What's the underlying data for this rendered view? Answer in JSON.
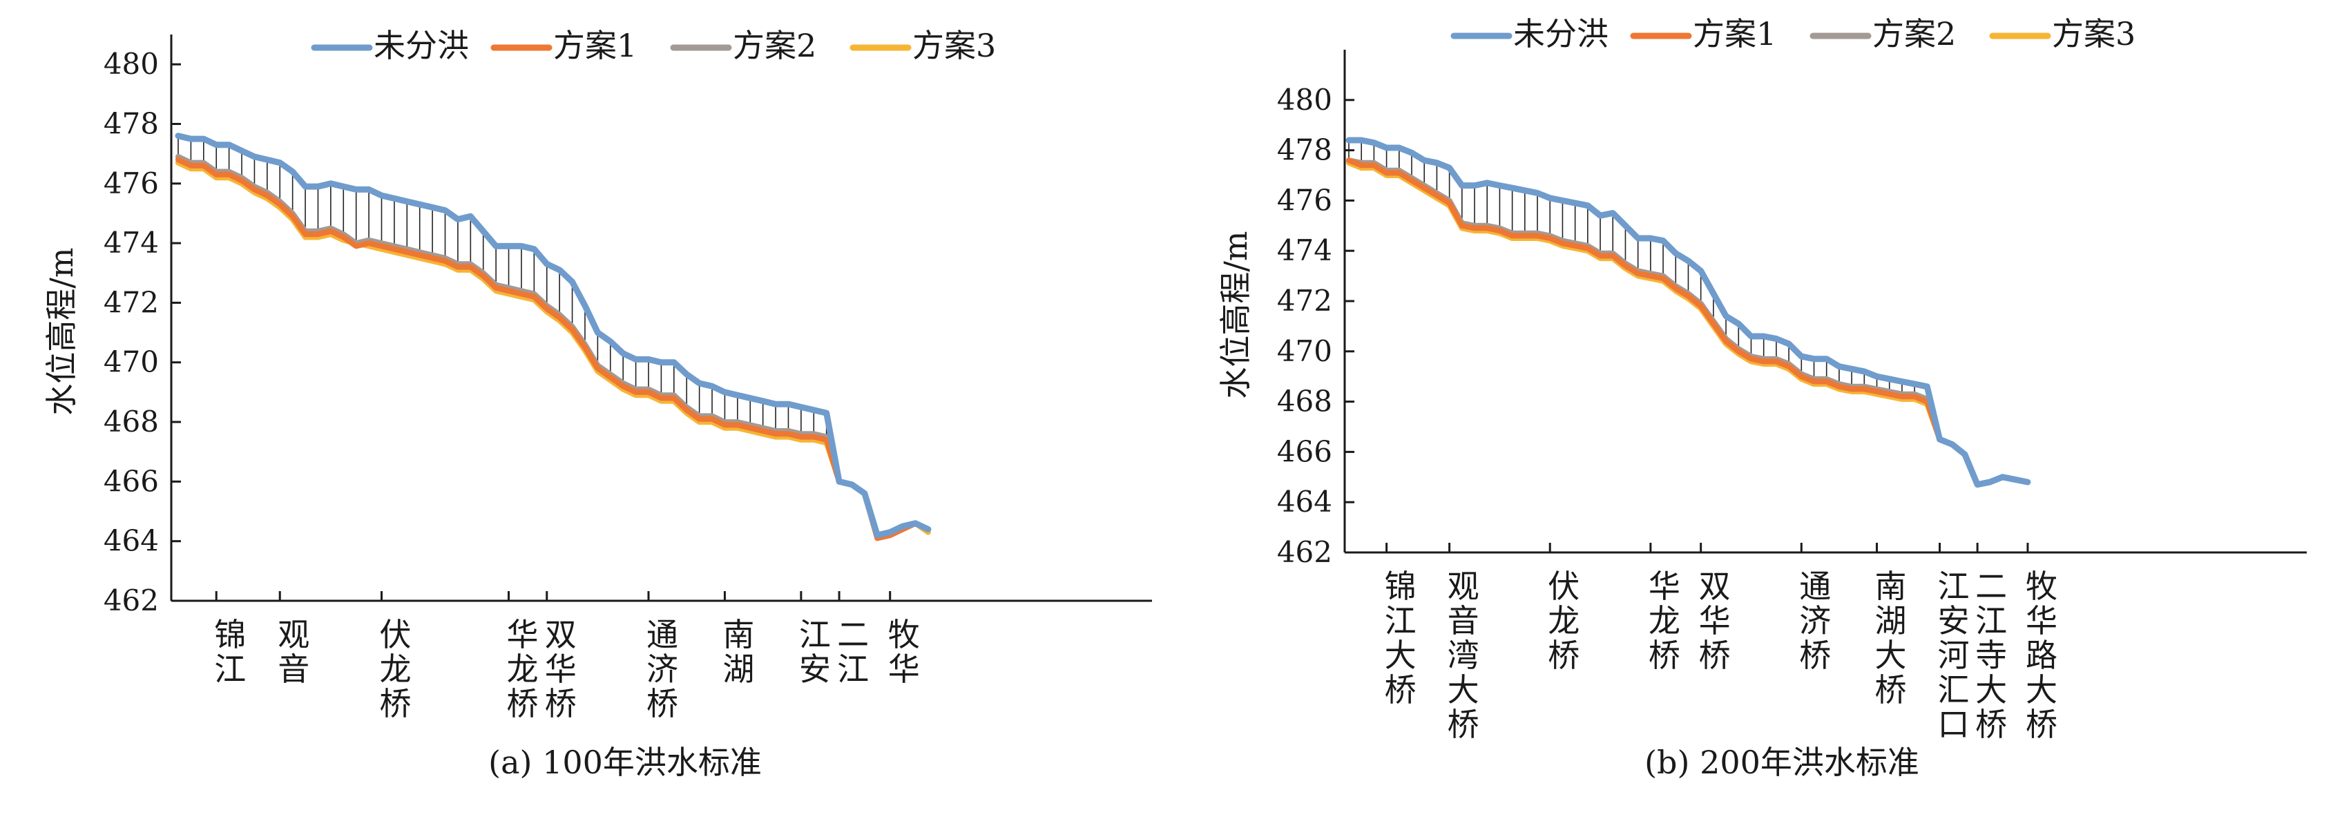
{
  "colors": {
    "未分洪": "#6f9ccc",
    "方案1": "#ee7733",
    "方案2": "#a39a95",
    "方案3": "#f6b535"
  },
  "chart_data": [
    {
      "type": "line",
      "title": "(a) 100年洪水标准",
      "ylabel": "水位高程/m",
      "ylim": [
        462,
        481
      ],
      "yticks": [
        462,
        464,
        466,
        468,
        470,
        472,
        474,
        476,
        478,
        480
      ],
      "legend": [
        "未分洪",
        "方案1",
        "方案2",
        "方案3"
      ],
      "legend_position": "top",
      "x": [
        0,
        1,
        2,
        3,
        4,
        5,
        6,
        7,
        8,
        9,
        10,
        11,
        12,
        13,
        14,
        15,
        16,
        17,
        18,
        19,
        20,
        21,
        22,
        23,
        24,
        25,
        26,
        27,
        28,
        29,
        30,
        31,
        32,
        33,
        34,
        35,
        36,
        37,
        38,
        39,
        40,
        41,
        42,
        43,
        44,
        45,
        46,
        47,
        48,
        49,
        50,
        51,
        52,
        53,
        54,
        55,
        56,
        57,
        58,
        59,
        60,
        61,
        62,
        63,
        64,
        65,
        66,
        67,
        68,
        69,
        70,
        71,
        72,
        73,
        74
      ],
      "xlim": [
        0,
        74
      ],
      "series": [
        {
          "name": "未分洪",
          "values": [
            477.6,
            477.5,
            477.5,
            477.3,
            477.3,
            477.1,
            476.9,
            476.8,
            476.7,
            476.4,
            475.9,
            475.9,
            476.0,
            475.9,
            475.8,
            475.8,
            475.6,
            475.5,
            475.4,
            475.3,
            475.2,
            475.1,
            474.8,
            474.9,
            474.4,
            473.9,
            473.9,
            473.9,
            473.8,
            473.3,
            473.1,
            472.7,
            471.9,
            471.0,
            470.7,
            470.3,
            470.1,
            470.1,
            470.0,
            470.0,
            469.6,
            469.3,
            469.2,
            469.0,
            468.9,
            468.8,
            468.7,
            468.6,
            468.6,
            468.5,
            468.4,
            468.3,
            466.0,
            465.9,
            465.6,
            464.2,
            464.3,
            464.5,
            464.6,
            464.4,
            null,
            null,
            null,
            null,
            null,
            null,
            null,
            null,
            null,
            null,
            null,
            null,
            null,
            null,
            null
          ]
        },
        {
          "name": "方案1",
          "values": [
            476.8,
            476.6,
            476.6,
            476.3,
            476.3,
            476.1,
            475.8,
            475.6,
            475.3,
            474.9,
            474.3,
            474.3,
            474.4,
            474.2,
            473.9,
            474.0,
            473.9,
            473.8,
            473.7,
            473.6,
            473.5,
            473.4,
            473.2,
            473.2,
            472.9,
            472.5,
            472.4,
            472.3,
            472.2,
            471.8,
            471.5,
            471.1,
            470.5,
            469.8,
            469.5,
            469.2,
            469.0,
            469.0,
            468.8,
            468.8,
            468.4,
            468.1,
            468.1,
            467.9,
            467.9,
            467.8,
            467.7,
            467.6,
            467.6,
            467.5,
            467.5,
            467.4,
            466.0,
            465.9,
            465.6,
            464.1,
            464.2,
            464.4,
            464.6,
            464.4,
            null,
            null,
            null,
            null,
            null,
            null,
            null,
            null,
            null,
            null,
            null,
            null,
            null,
            null,
            null
          ]
        },
        {
          "name": "方案2",
          "values": [
            476.9,
            476.7,
            476.7,
            476.4,
            476.4,
            476.2,
            475.9,
            475.7,
            475.4,
            475.0,
            474.4,
            474.4,
            474.5,
            474.3,
            474.0,
            474.1,
            474.0,
            473.9,
            473.8,
            473.7,
            473.6,
            473.5,
            473.3,
            473.3,
            473.0,
            472.6,
            472.5,
            472.4,
            472.3,
            471.9,
            471.6,
            471.2,
            470.6,
            469.9,
            469.6,
            469.3,
            469.1,
            469.1,
            468.9,
            468.9,
            468.5,
            468.2,
            468.2,
            468.0,
            468.0,
            467.9,
            467.8,
            467.7,
            467.7,
            467.6,
            467.6,
            467.5,
            466.0,
            465.9,
            465.6,
            464.1,
            464.2,
            464.4,
            464.6,
            464.4,
            null,
            null,
            null,
            null,
            null,
            null,
            null,
            null,
            null,
            null,
            null,
            null,
            null,
            null,
            null
          ]
        },
        {
          "name": "方案3",
          "values": [
            476.7,
            476.5,
            476.5,
            476.2,
            476.2,
            476.0,
            475.7,
            475.5,
            475.2,
            474.8,
            474.2,
            474.2,
            474.3,
            474.1,
            474.0,
            473.9,
            473.8,
            473.7,
            473.6,
            473.5,
            473.4,
            473.3,
            473.1,
            473.1,
            472.8,
            472.4,
            472.3,
            472.2,
            472.1,
            471.7,
            471.4,
            471.0,
            470.4,
            469.7,
            469.4,
            469.1,
            468.9,
            468.9,
            468.7,
            468.7,
            468.3,
            468.0,
            468.0,
            467.8,
            467.8,
            467.7,
            467.6,
            467.5,
            467.5,
            467.4,
            467.4,
            467.3,
            466.0,
            465.9,
            465.6,
            464.1,
            464.2,
            464.4,
            464.6,
            464.3,
            null,
            null,
            null,
            null,
            null,
            null,
            null,
            null,
            null,
            null,
            null,
            null,
            null,
            null,
            null
          ]
        }
      ],
      "xtick_labels": [
        {
          "x": 3,
          "label": "锦江"
        },
        {
          "x": 8,
          "label": "观音"
        },
        {
          "x": 16,
          "label": "伏龙桥"
        },
        {
          "x": 26,
          "label": "华龙桥"
        },
        {
          "x": 29,
          "label": "双华桥"
        },
        {
          "x": 37,
          "label": "通济桥"
        },
        {
          "x": 43,
          "label": "南湖"
        },
        {
          "x": 49,
          "label": "江安"
        },
        {
          "x": 52,
          "label": "二江"
        },
        {
          "x": 56,
          "label": "牧华"
        }
      ]
    },
    {
      "type": "line",
      "title": "(b) 200年洪水标准",
      "ylabel": "水位高程/m",
      "ylim": [
        462,
        482
      ],
      "yticks": [
        462,
        464,
        466,
        468,
        470,
        472,
        474,
        476,
        478,
        480
      ],
      "legend": [
        "未分洪",
        "方案1",
        "方案2",
        "方案3"
      ],
      "legend_position": "top",
      "x": [
        0,
        1,
        2,
        3,
        4,
        5,
        6,
        7,
        8,
        9,
        10,
        11,
        12,
        13,
        14,
        15,
        16,
        17,
        18,
        19,
        20,
        21,
        22,
        23,
        24,
        25,
        26,
        27,
        28,
        29,
        30,
        31,
        32,
        33,
        34,
        35,
        36,
        37,
        38,
        39,
        40,
        41,
        42,
        43,
        44,
        45,
        46,
        47,
        48,
        49,
        50,
        51,
        52,
        53,
        54,
        55,
        56,
        57,
        58,
        59,
        60,
        61,
        62,
        63,
        64,
        65,
        66,
        67,
        68,
        69,
        70,
        71,
        72,
        73,
        74
      ],
      "xlim": [
        0,
        74
      ],
      "series": [
        {
          "name": "未分洪",
          "values": [
            478.4,
            478.4,
            478.3,
            478.1,
            478.1,
            477.9,
            477.6,
            477.5,
            477.3,
            476.6,
            476.6,
            476.7,
            476.6,
            476.5,
            476.4,
            476.3,
            476.1,
            476.0,
            475.9,
            475.8,
            475.4,
            475.5,
            475.0,
            474.5,
            474.5,
            474.4,
            473.9,
            473.6,
            473.2,
            472.3,
            471.4,
            471.1,
            470.6,
            470.6,
            470.5,
            470.3,
            469.8,
            469.7,
            469.7,
            469.4,
            469.3,
            469.2,
            469.0,
            468.9,
            468.8,
            468.7,
            468.6,
            466.5,
            466.3,
            465.9,
            464.7,
            464.8,
            465.0,
            464.9,
            464.8,
            null,
            null,
            null,
            null,
            null,
            null,
            null,
            null,
            null,
            null,
            null,
            null,
            null,
            null,
            null,
            null,
            null,
            null,
            null,
            null
          ]
        },
        {
          "name": "方案1",
          "values": [
            477.6,
            477.4,
            477.4,
            477.1,
            477.1,
            476.8,
            476.5,
            476.2,
            475.9,
            475.0,
            474.9,
            474.9,
            474.8,
            474.6,
            474.6,
            474.6,
            474.5,
            474.3,
            474.2,
            474.1,
            473.8,
            473.8,
            473.4,
            473.1,
            473.0,
            472.9,
            472.5,
            472.2,
            471.8,
            471.1,
            470.4,
            470.0,
            469.7,
            469.6,
            469.6,
            469.4,
            469.0,
            468.8,
            468.8,
            468.6,
            468.5,
            468.5,
            468.4,
            468.3,
            468.2,
            468.2,
            468.0,
            466.5,
            466.3,
            465.9,
            464.7,
            464.8,
            465.0,
            464.9,
            464.8,
            null,
            null,
            null,
            null,
            null,
            null,
            null,
            null,
            null,
            null,
            null,
            null,
            null,
            null,
            null,
            null,
            null,
            null,
            null,
            null
          ]
        },
        {
          "name": "方案2",
          "values": [
            477.6,
            477.5,
            477.5,
            477.2,
            477.2,
            476.9,
            476.6,
            476.3,
            476.0,
            475.1,
            475.0,
            475.0,
            474.9,
            474.7,
            474.7,
            474.7,
            474.6,
            474.4,
            474.3,
            474.2,
            473.9,
            473.9,
            473.5,
            473.2,
            473.1,
            473.0,
            472.6,
            472.3,
            471.9,
            471.2,
            470.5,
            470.1,
            469.8,
            469.7,
            469.7,
            469.5,
            469.1,
            468.9,
            468.9,
            468.7,
            468.6,
            468.6,
            468.5,
            468.4,
            468.3,
            468.3,
            468.1,
            466.5,
            466.3,
            465.9,
            464.7,
            464.8,
            465.0,
            464.9,
            464.8,
            null,
            null,
            null,
            null,
            null,
            null,
            null,
            null,
            null,
            null,
            null,
            null,
            null,
            null,
            null,
            null,
            null,
            null,
            null,
            null
          ]
        },
        {
          "name": "方案3",
          "values": [
            477.5,
            477.3,
            477.3,
            477.0,
            477.0,
            476.7,
            476.4,
            476.1,
            475.8,
            474.9,
            474.8,
            474.8,
            474.7,
            474.5,
            474.5,
            474.5,
            474.4,
            474.2,
            474.1,
            474.0,
            473.7,
            473.7,
            473.3,
            473.0,
            472.9,
            472.8,
            472.4,
            472.1,
            471.7,
            471.0,
            470.3,
            469.9,
            469.6,
            469.5,
            469.5,
            469.3,
            468.9,
            468.7,
            468.7,
            468.5,
            468.4,
            468.4,
            468.3,
            468.2,
            468.1,
            468.1,
            467.9,
            466.5,
            466.3,
            465.9,
            464.7,
            464.8,
            465.0,
            464.9,
            464.8,
            null,
            null,
            null,
            null,
            null,
            null,
            null,
            null,
            null,
            null,
            null,
            null,
            null,
            null,
            null,
            null,
            null,
            null,
            null,
            null
          ]
        }
      ],
      "xtick_labels": [
        {
          "x": 3,
          "label": "锦江大桥"
        },
        {
          "x": 8,
          "label": "观音湾大桥"
        },
        {
          "x": 16,
          "label": "伏龙桥"
        },
        {
          "x": 24,
          "label": "华龙桥"
        },
        {
          "x": 28,
          "label": "双华桥"
        },
        {
          "x": 36,
          "label": "通济桥"
        },
        {
          "x": 42,
          "label": "南湖大桥"
        },
        {
          "x": 47,
          "label": "江安河汇口"
        },
        {
          "x": 50,
          "label": "二江寺大桥"
        },
        {
          "x": 54,
          "label": "牧华路大桥"
        }
      ]
    }
  ]
}
